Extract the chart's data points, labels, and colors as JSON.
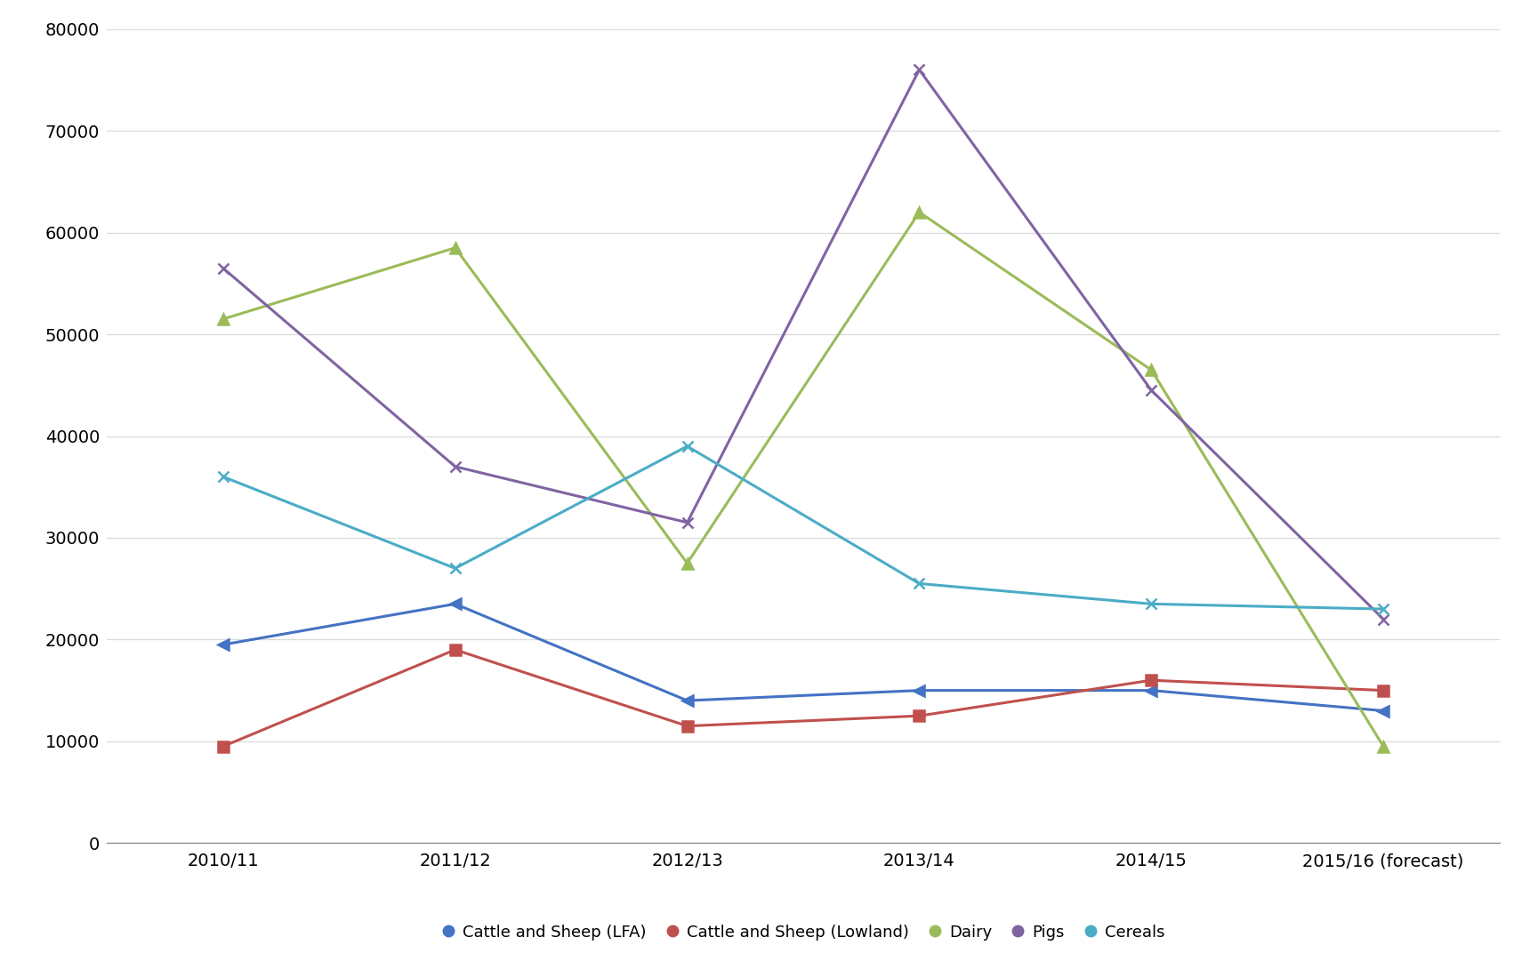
{
  "x_labels": [
    "2010/11",
    "2011/12",
    "2012/13",
    "2013/14",
    "2014/15",
    "2015/16 (forecast)"
  ],
  "series": {
    "Cattle and Sheep (LFA)": {
      "values": [
        19500,
        23500,
        14000,
        15000,
        15000,
        13000
      ],
      "color": "#4472C4",
      "marker": "<"
    },
    "Cattle and Sheep (Lowland)": {
      "values": [
        9500,
        19000,
        11500,
        12500,
        16000,
        15000
      ],
      "color": "#C0504D",
      "marker": "s"
    },
    "Dairy": {
      "values": [
        51500,
        58500,
        27500,
        62000,
        46500,
        9500
      ],
      "color": "#9BBB59",
      "marker": "^"
    },
    "Pigs": {
      "values": [
        56500,
        37000,
        31500,
        76000,
        44500,
        22000
      ],
      "color": "#8064A2",
      "marker": "x"
    },
    "Cereals": {
      "values": [
        36000,
        27000,
        39000,
        25500,
        23500,
        23000
      ],
      "color": "#4BACC6",
      "marker": "x"
    }
  },
  "ylim": [
    0,
    80000
  ],
  "yticks": [
    0,
    10000,
    20000,
    30000,
    40000,
    50000,
    60000,
    70000,
    80000
  ],
  "background_color": "#FFFFFF",
  "grid_color": "#D9D9D9",
  "linewidth": 2.2,
  "markersize": 8,
  "tick_fontsize": 14,
  "legend_fontsize": 13
}
